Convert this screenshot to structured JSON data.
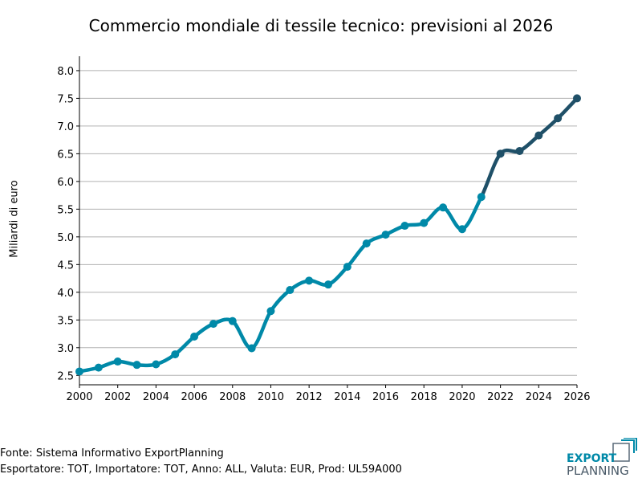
{
  "chart_data": {
    "type": "line",
    "title": "Commercio mondiale di tessile tecnico: previsioni al 2026",
    "xlabel": "",
    "ylabel": "Miliardi di euro",
    "x": [
      2000,
      2001,
      2002,
      2003,
      2004,
      2005,
      2006,
      2007,
      2008,
      2009,
      2010,
      2011,
      2012,
      2013,
      2014,
      2015,
      2016,
      2017,
      2018,
      2019,
      2020,
      2021,
      2022,
      2023,
      2024,
      2025,
      2026
    ],
    "values": [
      2.57,
      2.64,
      2.75,
      2.69,
      2.7,
      2.88,
      3.2,
      3.43,
      3.48,
      2.99,
      3.66,
      4.04,
      4.21,
      4.14,
      4.46,
      4.88,
      5.04,
      5.2,
      5.25,
      5.53,
      5.14,
      5.72,
      6.5,
      6.55,
      6.83,
      7.14,
      7.5
    ],
    "forecast_from": 2021,
    "xlim": [
      2000,
      2026
    ],
    "ylim": [
      2.33,
      8.26
    ],
    "xticks": [
      "2000",
      "2002",
      "2004",
      "2006",
      "2008",
      "2010",
      "2012",
      "2014",
      "2016",
      "2018",
      "2020",
      "2022",
      "2024",
      "2026"
    ],
    "yticks": [
      "2.5",
      "3.0",
      "3.5",
      "4.0",
      "4.5",
      "5.0",
      "5.5",
      "6.0",
      "6.5",
      "7.0",
      "7.5",
      "8.0"
    ],
    "grid": "horizontal",
    "colors": {
      "historical": "#0089a8",
      "forecast": "#1f5068",
      "grid": "#b0b0b0"
    }
  },
  "footer": {
    "source": "Fonte: Sistema Informativo ExportPlanning",
    "filters": "Esportatore: TOT, Importatore: TOT, Anno: ALL, Valuta: EUR, Prod: UL59A000"
  },
  "logo": {
    "line1": "EXPORT",
    "line2": "PLANNING"
  }
}
